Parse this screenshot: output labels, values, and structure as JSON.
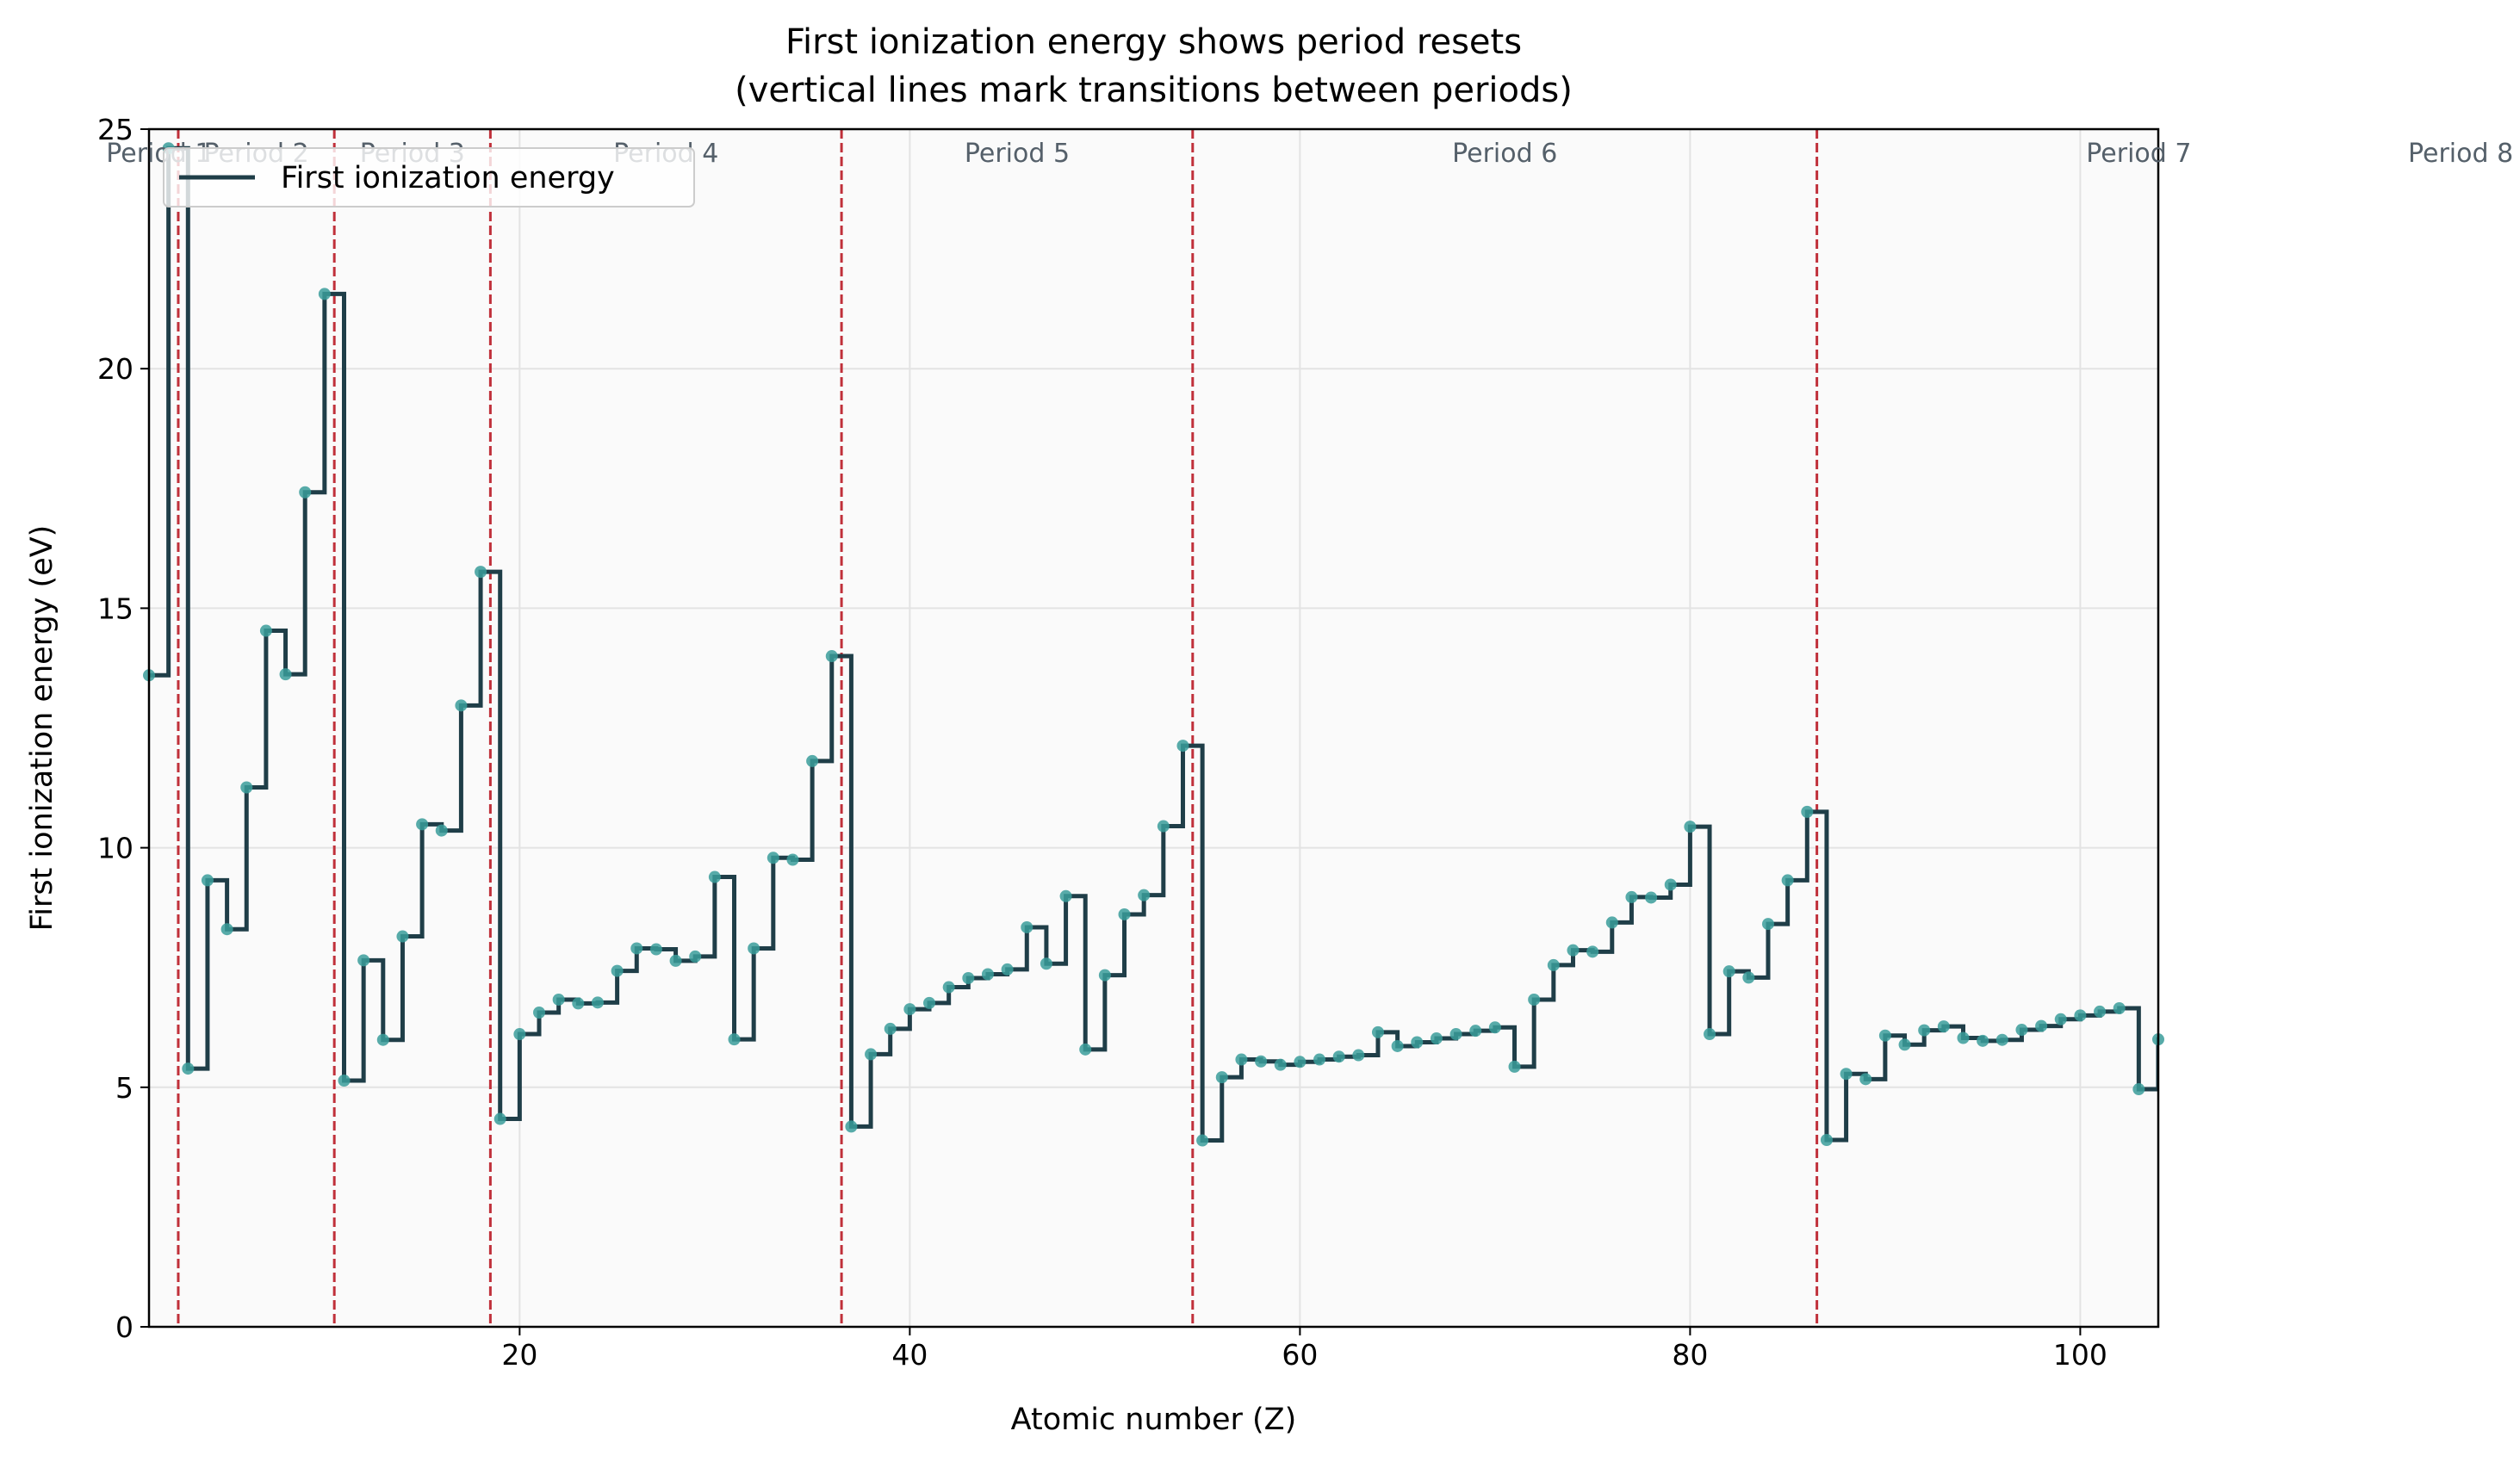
{
  "chart_data": {
    "type": "line",
    "title": "First ionization energy shows period resets",
    "subtitle": "(vertical lines mark transitions between periods)",
    "xlabel": "Atomic number (Z)",
    "ylabel": "First ionization energy (eV)",
    "xlim": [
      1,
      104
    ],
    "ylim": [
      0,
      25
    ],
    "xticks": [
      20,
      40,
      60,
      80,
      100
    ],
    "yticks": [
      0,
      5,
      10,
      15,
      20,
      25
    ],
    "grid": true,
    "legend_position": "upper-left",
    "series": [
      {
        "name": "First ionization energy",
        "step": "post",
        "line_color": "#1f3e48",
        "marker_color": "#3a9c9a",
        "x": [
          1,
          2,
          3,
          4,
          5,
          6,
          7,
          8,
          9,
          10,
          11,
          12,
          13,
          14,
          15,
          16,
          17,
          18,
          19,
          20,
          21,
          22,
          23,
          24,
          25,
          26,
          27,
          28,
          29,
          30,
          31,
          32,
          33,
          34,
          35,
          36,
          37,
          38,
          39,
          40,
          41,
          42,
          43,
          44,
          45,
          46,
          47,
          48,
          49,
          50,
          51,
          52,
          53,
          54,
          55,
          56,
          57,
          58,
          59,
          60,
          61,
          62,
          63,
          64,
          65,
          66,
          67,
          68,
          69,
          70,
          71,
          72,
          73,
          74,
          75,
          76,
          77,
          78,
          79,
          80,
          81,
          82,
          83,
          84,
          85,
          86,
          87,
          88,
          89,
          90,
          91,
          92,
          93,
          94,
          95,
          96,
          97,
          98,
          99,
          100,
          101,
          102,
          103,
          104
        ],
        "y": [
          13.6,
          24.6,
          5.39,
          9.32,
          8.3,
          11.26,
          14.53,
          13.62,
          17.42,
          21.56,
          5.14,
          7.65,
          5.99,
          8.15,
          10.49,
          10.36,
          12.97,
          15.76,
          4.34,
          6.11,
          6.56,
          6.83,
          6.75,
          6.77,
          7.43,
          7.9,
          7.88,
          7.64,
          7.73,
          9.39,
          6.0,
          7.9,
          9.79,
          9.75,
          11.81,
          14.0,
          4.18,
          5.69,
          6.22,
          6.63,
          6.76,
          7.09,
          7.28,
          7.36,
          7.46,
          8.34,
          7.58,
          8.99,
          5.79,
          7.34,
          8.61,
          9.01,
          10.45,
          12.13,
          3.89,
          5.21,
          5.58,
          5.54,
          5.47,
          5.53,
          5.58,
          5.64,
          5.67,
          6.15,
          5.86,
          5.94,
          6.02,
          6.11,
          6.18,
          6.25,
          5.43,
          6.83,
          7.55,
          7.86,
          7.83,
          8.44,
          8.97,
          8.96,
          9.23,
          10.44,
          6.11,
          7.42,
          7.29,
          8.41,
          9.32,
          10.75,
          3.9,
          5.28,
          5.17,
          6.08,
          5.89,
          6.19,
          6.27,
          6.03,
          5.97,
          5.99,
          6.2,
          6.28,
          6.42,
          6.5,
          6.58,
          6.65,
          4.96,
          6.0
        ]
      }
    ],
    "period_boundaries": [
      2.5,
      10.5,
      18.5,
      36.5,
      54.5,
      86.5
    ],
    "period_boundary_color": "#c0303a",
    "period_labels": [
      {
        "label": "Period 1",
        "x": 1.5
      },
      {
        "label": "Period 2",
        "x": 6.5
      },
      {
        "label": "Period 3",
        "x": 14.5
      },
      {
        "label": "Period 4",
        "x": 27.5
      },
      {
        "label": "Period 5",
        "x": 45.5
      },
      {
        "label": "Period 6",
        "x": 70.5
      },
      {
        "label": "Period 7",
        "x": 103
      },
      {
        "label": "Period 8",
        "x": 119.5
      }
    ]
  }
}
